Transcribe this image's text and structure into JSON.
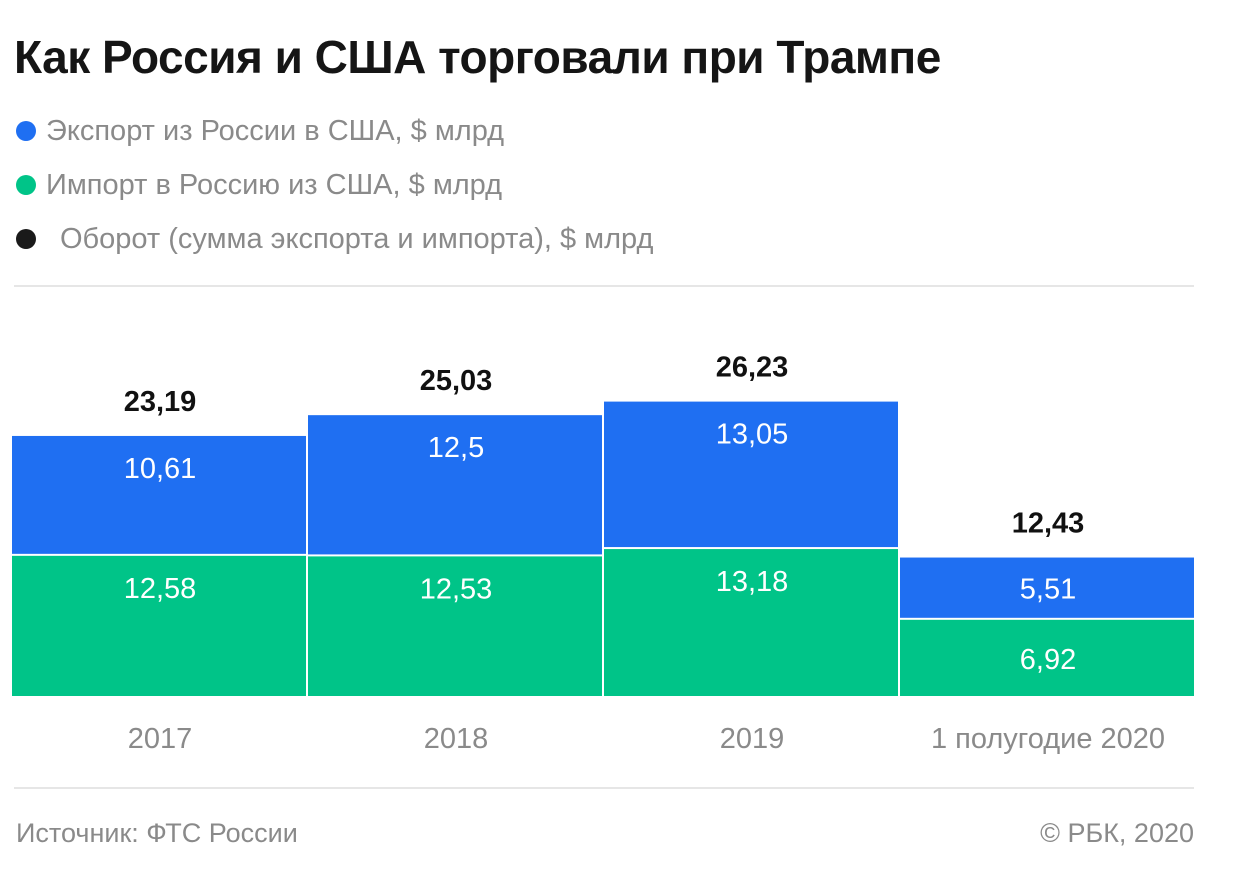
{
  "title": "Как Россия и США торговали при Трампе",
  "legend": [
    {
      "label": "Экспорт из России в США, $ млрд",
      "color": "#1f6ff2"
    },
    {
      "label": "Импорт в Россию из США, $ млрд",
      "color": "#00c488"
    },
    {
      "label": "Оборот (сумма экспорта и импорта), $ млрд",
      "color": "#1a1a1a"
    }
  ],
  "chart_data": {
    "type": "bar",
    "stacked": true,
    "categories": [
      "2017",
      "2018",
      "2019",
      "1 полугодие 2020"
    ],
    "series": [
      {
        "name": "Импорт в Россию из США, $ млрд",
        "color": "#00c488",
        "values": [
          12.58,
          12.53,
          13.18,
          6.92
        ],
        "labels": [
          "12,58",
          "12,53",
          "13,18",
          "6,92"
        ]
      },
      {
        "name": "Экспорт из России в США, $ млрд",
        "color": "#1f6ff2",
        "values": [
          10.61,
          12.5,
          13.05,
          5.51
        ],
        "labels": [
          "10,61",
          "12,5",
          "13,05",
          "5,51"
        ]
      }
    ],
    "totals": [
      23.19,
      25.03,
      26.23,
      12.43
    ],
    "total_labels": [
      "23,19",
      "25,03",
      "26,23",
      "12,43"
    ],
    "grid": false
  },
  "footer": {
    "source": "Источник: ФТС России",
    "copyright": "© РБК, 2020"
  }
}
